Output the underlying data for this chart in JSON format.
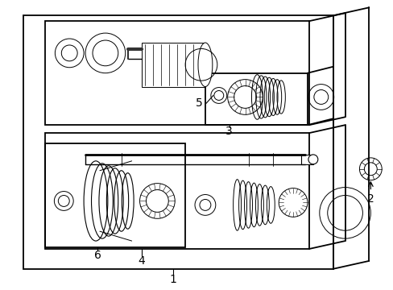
{
  "background_color": "#ffffff",
  "line_color": "#000000",
  "lw_main": 1.3,
  "lw_thin": 0.8,
  "lw_part": 0.7
}
